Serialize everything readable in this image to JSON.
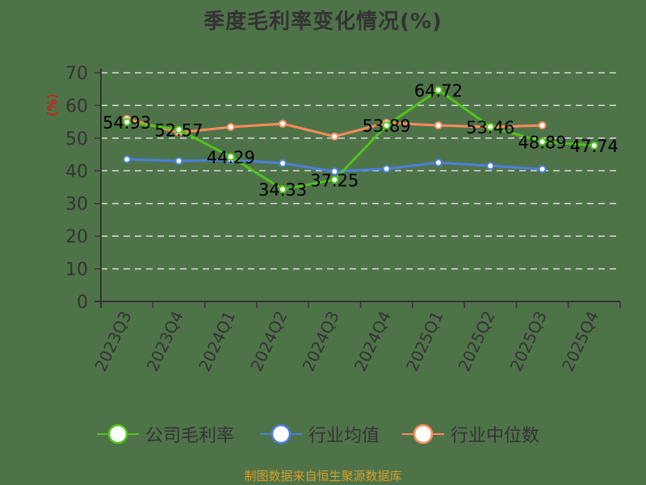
{
  "title": "季度毛利率变化情况(%)",
  "footer": "制图数据来自恒生聚源数据库",
  "colors": {
    "background": "#4f7349",
    "company": "#52c41a",
    "average": "#4a7fe0",
    "median": "#ff8c5a",
    "axis": "#333333",
    "grid": "#d9d9d9",
    "unit": "#ff0000",
    "footer": "#d4a02a"
  },
  "chart_data": {
    "type": "line",
    "title": "季度毛利率变化情况(%)",
    "xlabel": "",
    "ylabel": "(%)",
    "ylim": [
      0,
      70
    ],
    "yticks": [
      0,
      10,
      20,
      30,
      40,
      50,
      60,
      70
    ],
    "grid": true,
    "legend_position": "bottom",
    "categories": [
      "2023Q3",
      "2023Q4",
      "2024Q1",
      "2024Q2",
      "2024Q3",
      "2024Q4",
      "2025Q1",
      "2025Q2",
      "2025Q3",
      "2025Q4"
    ],
    "series": [
      {
        "name": "公司毛利率",
        "color": "#52c41a",
        "values": [
          54.93,
          52.57,
          44.29,
          34.33,
          37.25,
          53.89,
          64.72,
          53.46,
          48.89,
          47.74
        ],
        "labels": [
          "54.93",
          "52.57",
          "44.29",
          "34.33",
          "37.25",
          "53.89",
          "64.72",
          "53.46",
          "48.89",
          "47.74"
        ]
      },
      {
        "name": "行业均值",
        "color": "#4a7fe0",
        "values": [
          43.5,
          43.0,
          43.3,
          42.3,
          39.8,
          40.6,
          42.5,
          41.5,
          40.5,
          null
        ]
      },
      {
        "name": "行业中位数",
        "color": "#ff8c5a",
        "values": [
          55.9,
          51.7,
          53.4,
          54.4,
          50.5,
          54.7,
          53.9,
          53.4,
          53.9,
          null
        ]
      }
    ]
  },
  "legend": [
    {
      "label": "公司毛利率",
      "color": "#52c41a"
    },
    {
      "label": "行业均值",
      "color": "#4a7fe0"
    },
    {
      "label": "行业中位数",
      "color": "#ff8c5a"
    }
  ]
}
